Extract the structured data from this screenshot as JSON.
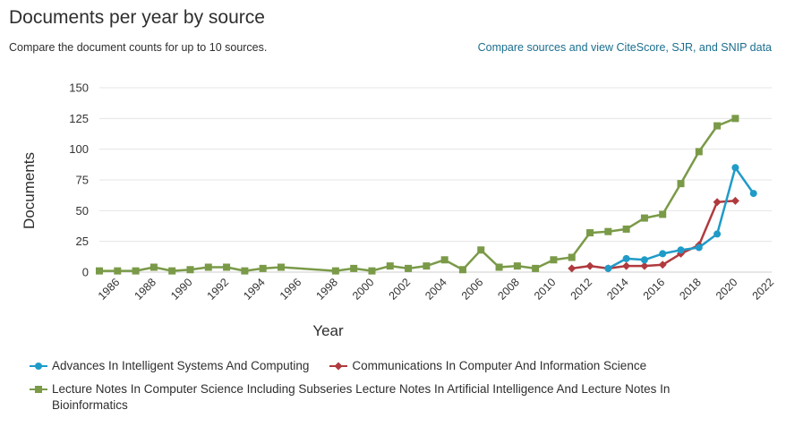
{
  "header": {
    "title": "Documents per year by source",
    "subtitle": "Compare the document counts for up to 10 sources.",
    "compare_link": "Compare sources and view CiteScore, SJR, and SNIP data"
  },
  "chart_data": {
    "type": "line",
    "xlabel": "Year",
    "ylabel": "Documents",
    "xlim": [
      1985,
      2022
    ],
    "ylim": [
      0,
      150
    ],
    "x_ticks": [
      1986,
      1988,
      1990,
      1992,
      1994,
      1996,
      1998,
      2000,
      2002,
      2004,
      2006,
      2008,
      2010,
      2012,
      2014,
      2016,
      2018,
      2020,
      2022
    ],
    "y_ticks": [
      0,
      25,
      50,
      75,
      100,
      125,
      150
    ],
    "grid": "horizontal",
    "legend_position": "bottom",
    "series": [
      {
        "name": "Advances In Intelligent Systems And Computing",
        "color": "#1f9bc8",
        "marker": "circle",
        "x": [
          2013,
          2014,
          2015,
          2016,
          2017,
          2018,
          2019,
          2020,
          2021
        ],
        "y": [
          3,
          11,
          10,
          15,
          18,
          20,
          31,
          85,
          64
        ]
      },
      {
        "name": "Communications In Computer And Information Science",
        "color": "#b03a3e",
        "marker": "diamond",
        "x": [
          2011,
          2012,
          2013,
          2014,
          2015,
          2016,
          2017,
          2018,
          2019,
          2020
        ],
        "y": [
          3,
          5,
          3,
          5,
          5,
          6,
          15,
          22,
          57,
          58
        ]
      },
      {
        "name": "Lecture Notes In Computer Science Including Subseries Lecture Notes In Artificial Intelligence And Lecture Notes In Bioinformatics",
        "color": "#7a9a48",
        "marker": "square",
        "x": [
          1985,
          1986,
          1987,
          1988,
          1989,
          1990,
          1991,
          1992,
          1993,
          1994,
          1995,
          1998,
          1999,
          2000,
          2001,
          2002,
          2003,
          2004,
          2005,
          2006,
          2007,
          2008,
          2009,
          2010,
          2011,
          2012,
          2013,
          2014,
          2015,
          2016,
          2017,
          2018,
          2019,
          2020
        ],
        "y": [
          1,
          1,
          1,
          4,
          1,
          2,
          4,
          4,
          1,
          3,
          4,
          1,
          3,
          1,
          5,
          3,
          5,
          10,
          2,
          18,
          4,
          5,
          3,
          10,
          12,
          32,
          33,
          35,
          44,
          47,
          72,
          98,
          119,
          125
        ]
      }
    ]
  }
}
